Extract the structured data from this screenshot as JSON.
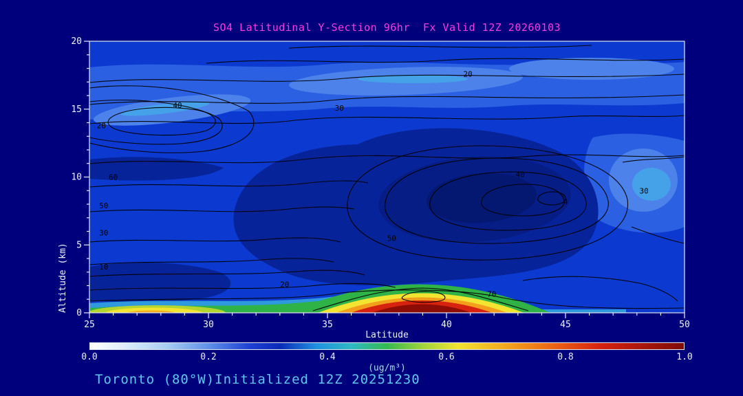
{
  "title": "SO4 Latitudinal Y-Section 96hr  Fx Valid 12Z 20260103",
  "footer": "Toronto (80°W)Initialized 12Z 20251230",
  "colors": {
    "background": "#00007d",
    "title_text": "#fa3be0",
    "footer_text": "#62c6f0",
    "axis_text": "#eef2ff",
    "unit_text": "#a5dcf6",
    "contour_line": "#000000",
    "hot_core": "#8e0c06",
    "base_field_blue": "#0c3ad0"
  },
  "axes": {
    "x": {
      "label": "Latitude",
      "min": 25,
      "max": 50,
      "ticks": [
        25,
        30,
        35,
        40,
        45,
        50
      ],
      "minor_step": 1
    },
    "y": {
      "label": "Altitude (km)",
      "min": 0,
      "max": 20,
      "ticks": [
        0,
        5,
        10,
        15,
        20
      ],
      "minor_step": 1
    }
  },
  "colorbar": {
    "unit": "(ug/m³)",
    "ticks": [
      "0.0",
      "0.2",
      "0.4",
      "0.6",
      "0.8",
      "1.0"
    ],
    "stops": [
      {
        "value": 0.0,
        "color": "#ffffff"
      },
      {
        "value": 0.06,
        "color": "#dcedfa"
      },
      {
        "value": 0.13,
        "color": "#a8cdf2"
      },
      {
        "value": 0.2,
        "color": "#5f8fe8"
      },
      {
        "value": 0.27,
        "color": "#1d3fd4"
      },
      {
        "value": 0.32,
        "color": "#0a2ab8"
      },
      {
        "value": 0.38,
        "color": "#1f8fe0"
      },
      {
        "value": 0.44,
        "color": "#2fb9c4"
      },
      {
        "value": 0.5,
        "color": "#35b94e"
      },
      {
        "value": 0.56,
        "color": "#9ed63b"
      },
      {
        "value": 0.62,
        "color": "#f2e431"
      },
      {
        "value": 0.7,
        "color": "#f2a71e"
      },
      {
        "value": 0.78,
        "color": "#ec6414"
      },
      {
        "value": 0.86,
        "color": "#d6220f"
      },
      {
        "value": 1.0,
        "color": "#7e0b06"
      }
    ]
  },
  "chart_data": {
    "type": "heatmap",
    "title": "SO4 Latitudinal Y-Section 96hr  Fx Valid 12Z 20260103",
    "xlabel": "Latitude",
    "ylabel": "Altitude (km)",
    "units": "ug/m3",
    "xlim": [
      25,
      50
    ],
    "ylim": [
      0,
      20
    ],
    "zlim": [
      0.0,
      1.0
    ],
    "legend_position": "bottom colorbar",
    "grid": false,
    "x": [
      25,
      27.5,
      30,
      32.5,
      35,
      37.5,
      40,
      42.5,
      45,
      47.5,
      50
    ],
    "y": [
      0,
      1,
      2,
      4,
      6,
      8,
      10,
      12,
      14,
      16,
      18,
      20
    ],
    "values": [
      [
        0.45,
        0.7,
        0.5,
        0.45,
        0.55,
        0.9,
        0.95,
        0.7,
        0.35,
        0.25,
        0.2
      ],
      [
        0.3,
        0.4,
        0.35,
        0.3,
        0.35,
        0.55,
        0.65,
        0.4,
        0.28,
        0.2,
        0.2
      ],
      [
        0.3,
        0.32,
        0.3,
        0.26,
        0.26,
        0.3,
        0.32,
        0.3,
        0.25,
        0.2,
        0.2
      ],
      [
        0.28,
        0.3,
        0.28,
        0.26,
        0.26,
        0.3,
        0.3,
        0.3,
        0.26,
        0.2,
        0.2
      ],
      [
        0.25,
        0.25,
        0.26,
        0.27,
        0.3,
        0.3,
        0.3,
        0.32,
        0.3,
        0.24,
        0.2
      ],
      [
        0.22,
        0.22,
        0.25,
        0.27,
        0.3,
        0.3,
        0.32,
        0.33,
        0.3,
        0.22,
        0.16
      ],
      [
        0.26,
        0.27,
        0.26,
        0.28,
        0.3,
        0.3,
        0.3,
        0.3,
        0.26,
        0.2,
        0.15
      ],
      [
        0.22,
        0.22,
        0.24,
        0.26,
        0.26,
        0.3,
        0.3,
        0.26,
        0.2,
        0.16,
        0.15
      ],
      [
        0.15,
        0.12,
        0.15,
        0.2,
        0.2,
        0.24,
        0.25,
        0.22,
        0.2,
        0.16,
        0.15
      ],
      [
        0.16,
        0.15,
        0.16,
        0.2,
        0.2,
        0.2,
        0.2,
        0.2,
        0.16,
        0.15,
        0.16
      ],
      [
        0.2,
        0.2,
        0.2,
        0.2,
        0.17,
        0.16,
        0.16,
        0.2,
        0.2,
        0.2,
        0.2
      ],
      [
        0.2,
        0.2,
        0.2,
        0.2,
        0.2,
        0.2,
        0.2,
        0.2,
        0.2,
        0.2,
        0.2
      ]
    ],
    "overlay": "black line contours of secondary field, labeled",
    "overlay_contour_labels": [
      {
        "v": "20",
        "lat": 40.9,
        "alt": 17.6
      },
      {
        "v": "30",
        "lat": 35.5,
        "alt": 15.1
      },
      {
        "v": "40",
        "lat": 28.7,
        "alt": 15.3
      },
      {
        "v": "20",
        "lat": 25.5,
        "alt": 13.8
      },
      {
        "v": "60",
        "lat": 26.0,
        "alt": 10.0
      },
      {
        "v": "50",
        "lat": 25.6,
        "alt": 7.9
      },
      {
        "v": "30",
        "lat": 25.6,
        "alt": 5.9
      },
      {
        "v": "10",
        "lat": 25.6,
        "alt": 3.4
      },
      {
        "v": "40",
        "lat": 43.1,
        "alt": 10.2
      },
      {
        "v": "4",
        "lat": 45.0,
        "alt": 8.2
      },
      {
        "v": "30",
        "lat": 48.3,
        "alt": 9.0
      },
      {
        "v": "50",
        "lat": 37.7,
        "alt": 5.5
      },
      {
        "v": "20",
        "lat": 33.2,
        "alt": 2.1
      },
      {
        "v": "70",
        "lat": 41.9,
        "alt": 1.4
      }
    ]
  }
}
